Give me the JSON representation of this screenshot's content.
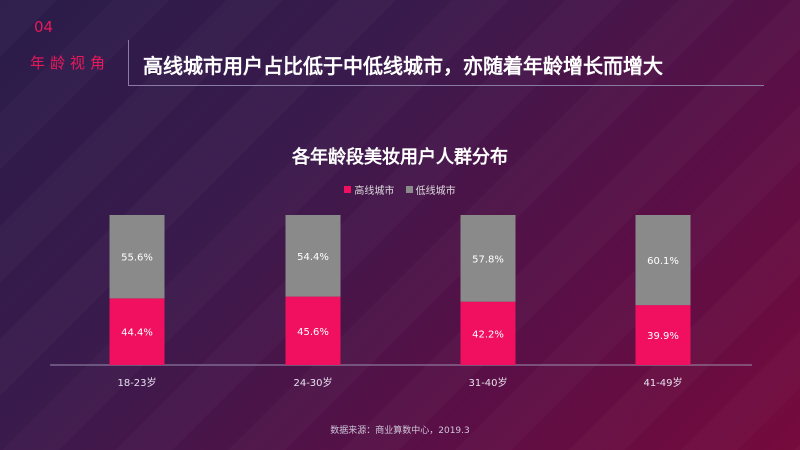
{
  "header": {
    "section_number": "04",
    "section_name": "年龄视角",
    "headline": "高线城市用户占比低于中低线城市，亦随着年龄增长而增大"
  },
  "chart_data": {
    "type": "bar",
    "stacked": true,
    "title": "各年龄段美妆用户人群分布",
    "categories": [
      "18-23岁",
      "24-30岁",
      "31-40岁",
      "41-49岁"
    ],
    "series": [
      {
        "name": "高线城市",
        "values": [
          44.4,
          45.6,
          42.2,
          39.9
        ],
        "labels": [
          "44.4%",
          "45.6%",
          "42.2%",
          "39.9%"
        ],
        "color": "#f0105f"
      },
      {
        "name": "低线城市",
        "values": [
          55.6,
          54.4,
          57.8,
          60.1
        ],
        "labels": [
          "55.6%",
          "54.4%",
          "57.8%",
          "60.1%"
        ],
        "color": "#8a8a8a"
      }
    ],
    "ylim": [
      0,
      100
    ],
    "legend_position": "top-center",
    "grid": false
  },
  "footer": {
    "source": "数据来源：商业算数中心，2019.3"
  }
}
